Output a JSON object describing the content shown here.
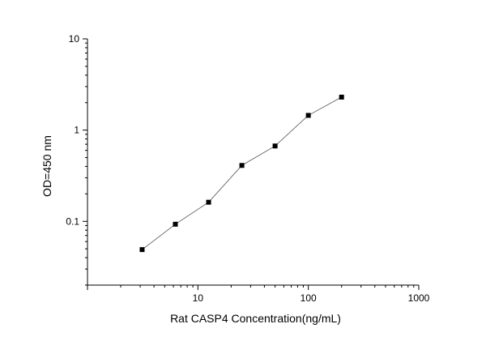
{
  "chart_data": {
    "type": "scatter",
    "xlabel": "Rat CASP4 Concentration(ng/mL)",
    "ylabel": "OD=450 nm",
    "xscale": "log",
    "yscale": "log",
    "xlim": [
      1,
      1000
    ],
    "ylim": [
      0.02,
      10
    ],
    "x_tick_labels": [
      "10",
      "100",
      "1000"
    ],
    "y_tick_labels": [
      "0.1",
      "1",
      "10"
    ],
    "x_tick_values": [
      10,
      100,
      1000
    ],
    "y_tick_values": [
      0.1,
      1,
      10
    ],
    "grid": false,
    "series": [
      {
        "x": [
          3.125,
          6.25,
          12.5,
          25,
          50,
          100,
          200
        ],
        "y": [
          0.049,
          0.093,
          0.162,
          0.41,
          0.67,
          1.45,
          2.3
        ],
        "marker": "square",
        "line": true
      }
    ],
    "colors": {
      "marker": "#000000",
      "line": "#555555",
      "axis": "#000000"
    }
  }
}
